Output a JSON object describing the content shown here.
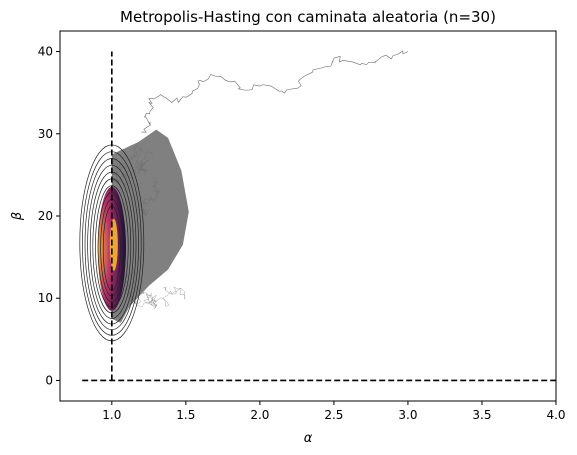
{
  "chart_data": {
    "type": "line",
    "title": "Metropolis-Hasting con caminata aleatoria (n=30)",
    "xlabel": "α",
    "ylabel": "β",
    "xlim": [
      0.65,
      4.0
    ],
    "ylim": [
      -2.5,
      42.5
    ],
    "xticks": [
      1.0,
      1.5,
      2.0,
      2.5,
      3.0,
      3.5,
      4.0
    ],
    "xtick_labels": [
      "1.0",
      "1.5",
      "2.0",
      "2.5",
      "3.0",
      "3.5",
      "4.0"
    ],
    "yticks": [
      0,
      10,
      20,
      30,
      40
    ],
    "ytick_labels": [
      "0",
      "10",
      "20",
      "30",
      "40"
    ],
    "grid": false,
    "legend": "none",
    "colors": {
      "trace": "#808080",
      "reference_lines": "#000000",
      "contours": "#222222",
      "density_low": "#1a0c3d",
      "density_mid": "#b8326b",
      "density_high": "#f6b533"
    },
    "reference_lines": [
      {
        "orientation": "vertical",
        "x": 1.0,
        "y_range": [
          0,
          40
        ],
        "style": "dashed"
      },
      {
        "orientation": "horizontal",
        "y": 0,
        "x_range": [
          0.8,
          4.0
        ],
        "style": "dashed"
      }
    ],
    "chain_path": [
      [
        3.0,
        40.0
      ],
      [
        2.9,
        39.5
      ],
      [
        2.8,
        39.0
      ],
      [
        2.72,
        38.4
      ],
      [
        2.6,
        38.8
      ],
      [
        2.5,
        39.2
      ],
      [
        2.45,
        38.2
      ],
      [
        2.3,
        37.0
      ],
      [
        2.25,
        35.5
      ],
      [
        2.15,
        35.2
      ],
      [
        2.0,
        35.8
      ],
      [
        1.9,
        35.3
      ],
      [
        1.8,
        36.3
      ],
      [
        1.7,
        37.0
      ],
      [
        1.6,
        36.5
      ],
      [
        1.58,
        35.5
      ],
      [
        1.5,
        34.5
      ],
      [
        1.45,
        33.8
      ],
      [
        1.35,
        34.5
      ],
      [
        1.25,
        34.3
      ],
      [
        1.28,
        33.2
      ],
      [
        1.22,
        32.0
      ],
      [
        1.26,
        31.0
      ],
      [
        1.2,
        30.2
      ]
    ],
    "cloud_envelope": [
      [
        1.0,
        27.5
      ],
      [
        1.18,
        29.0
      ],
      [
        1.3,
        30.5
      ],
      [
        1.38,
        29.5
      ],
      [
        1.47,
        25.5
      ],
      [
        1.52,
        20.5
      ],
      [
        1.48,
        16.5
      ],
      [
        1.38,
        13.5
      ],
      [
        1.25,
        11.5
      ],
      [
        1.12,
        9.0
      ],
      [
        1.06,
        7.0
      ],
      [
        1.0,
        7.5
      ]
    ],
    "density_center": [
      1.02,
      16.0
    ],
    "contour_count": 10
  }
}
